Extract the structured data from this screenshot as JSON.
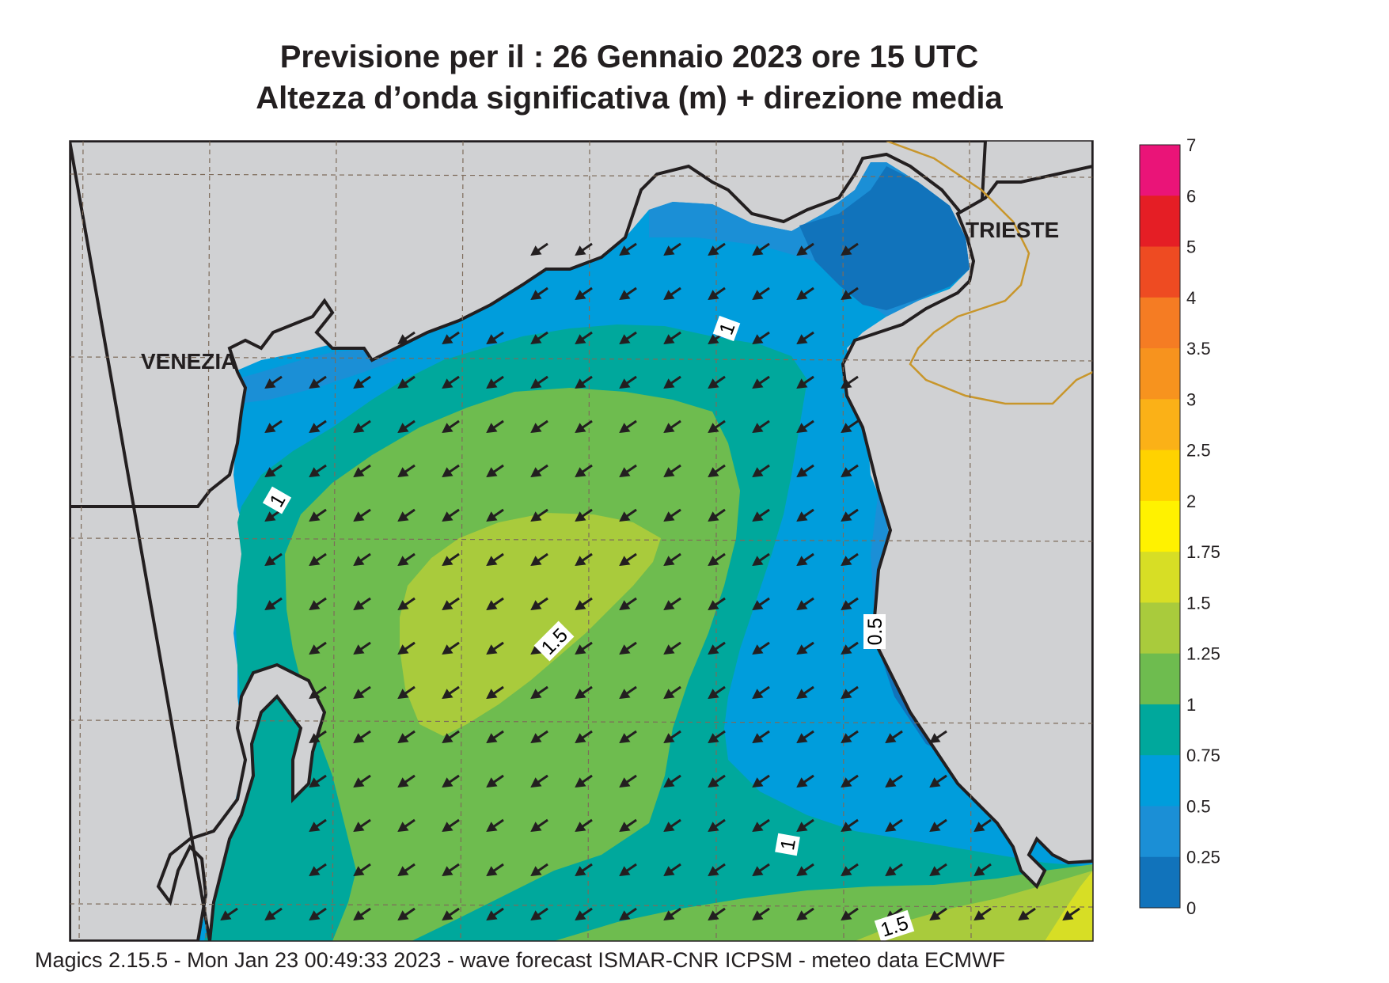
{
  "title_line1": "Previsione per il  :  26  Gennaio  2023   ore 15 UTC",
  "title_line2": "Altezza d’onda significativa (m) + direzione media",
  "footer": "Magics 2.15.5 - Mon Jan 23 00:49:33 2023 - wave forecast  ISMAR-CNR  ICPSM - meteo data   ECMWF",
  "places": [
    {
      "name": "VENEZIA"
    },
    {
      "name": "TRIESTE"
    }
  ],
  "contour_labels": [
    "1",
    "1",
    "1.5",
    "0.5",
    "1",
    "1.5"
  ],
  "legend": {
    "ticks": [
      "7",
      "6",
      "5",
      "4",
      "3.5",
      "3",
      "2.5",
      "2",
      "1.75",
      "1.5",
      "1.25",
      "1",
      "0.75",
      "0.5",
      "0.25",
      "0"
    ],
    "colors": [
      "#ea1478",
      "#e51e25",
      "#ee4b22",
      "#f57c23",
      "#f7931e",
      "#fbb117",
      "#ffd200",
      "#fff200",
      "#d7de25",
      "#a9cb3c",
      "#6ebc4f",
      "#00a89c",
      "#009ddc",
      "#1b8fd6",
      "#1173bb",
      "#0a5ba8"
    ]
  },
  "colors": {
    "land": "#d0d1d3",
    "coast": "#231f20",
    "border": "#c8962b"
  },
  "arrow_direction": "south-west"
}
